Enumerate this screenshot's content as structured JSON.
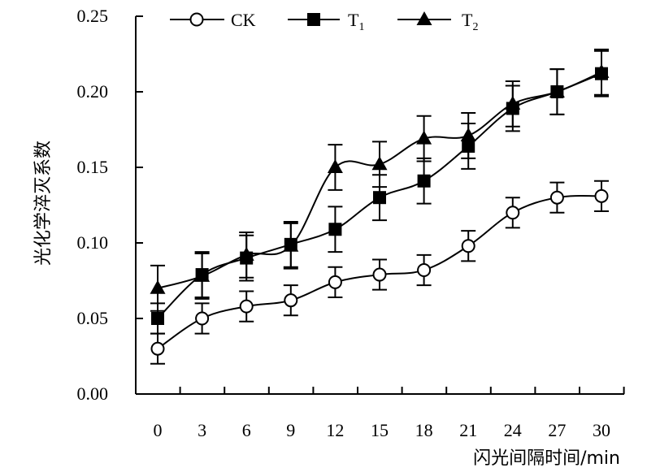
{
  "chart_data": {
    "type": "line",
    "title": "",
    "xlabel": "闪光间隔时间/min",
    "ylabel": "光化学淬灭系数",
    "x": [
      0,
      3,
      6,
      9,
      12,
      15,
      18,
      21,
      24,
      27,
      30
    ],
    "xticks": [
      "0",
      "3",
      "6",
      "9",
      "12",
      "15",
      "18",
      "21",
      "24",
      "27",
      "30"
    ],
    "yticks": [
      "0.00",
      "0.05",
      "0.10",
      "0.15",
      "0.20",
      "0.25"
    ],
    "ylim": [
      0,
      0.25
    ],
    "grid": false,
    "legend_position": "top",
    "series": [
      {
        "name": "CK",
        "marker": "open-circle",
        "values": [
          0.03,
          0.05,
          0.058,
          0.062,
          0.074,
          0.079,
          0.082,
          0.098,
          0.12,
          0.13,
          0.131
        ],
        "errors": [
          0.01,
          0.01,
          0.01,
          0.01,
          0.01,
          0.01,
          0.01,
          0.01,
          0.01,
          0.01,
          0.01
        ]
      },
      {
        "name": "T",
        "subscript": "1",
        "marker": "filled-square",
        "values": [
          0.05,
          0.079,
          0.09,
          0.099,
          0.109,
          0.13,
          0.141,
          0.164,
          0.189,
          0.2,
          0.212
        ],
        "errors": [
          0.01,
          0.015,
          0.015,
          0.015,
          0.015,
          0.015,
          0.015,
          0.015,
          0.015,
          0.015,
          0.015
        ]
      },
      {
        "name": "T",
        "subscript": "2",
        "marker": "filled-triangle",
        "values": [
          0.07,
          0.078,
          0.092,
          0.098,
          0.15,
          0.152,
          0.169,
          0.171,
          0.192,
          0.2,
          0.213
        ],
        "errors": [
          0.015,
          0.015,
          0.015,
          0.015,
          0.015,
          0.015,
          0.015,
          0.015,
          0.015,
          0.015,
          0.015
        ]
      }
    ]
  }
}
